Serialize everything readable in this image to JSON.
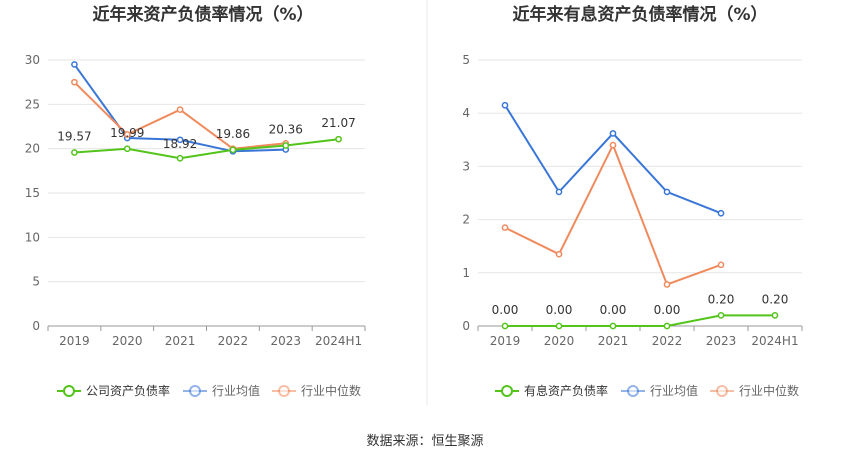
{
  "source_label": "数据来源：恒生聚源",
  "colors": {
    "company": "#52c41a",
    "industry_avg": "#3a76d8",
    "industry_median": "#f08a5d",
    "grid": "#e6e6e6",
    "axis": "#999999",
    "tick_text": "#666666",
    "title": "#333333",
    "divider": "#e8e8e8"
  },
  "chart_data": [
    {
      "type": "line",
      "title": "近年来资产负债率情况（%）",
      "categories": [
        "2019",
        "2020",
        "2021",
        "2022",
        "2023",
        "2024H1"
      ],
      "ylim": [
        0,
        30
      ],
      "yticks": [
        0,
        5,
        10,
        15,
        20,
        25,
        30
      ],
      "grid": true,
      "legend_position": "bottom",
      "series": [
        {
          "name": "公司资产负债率",
          "key": "company",
          "values": [
            19.57,
            19.99,
            18.92,
            19.86,
            20.36,
            21.07
          ],
          "labels": [
            "19.57",
            "19.99",
            "18.92",
            "19.86",
            "20.36",
            "21.07"
          ]
        },
        {
          "name": "行业均值",
          "key": "industry_avg",
          "values": [
            29.5,
            21.2,
            21.0,
            19.7,
            19.9,
            null
          ]
        },
        {
          "name": "行业中位数",
          "key": "industry_median",
          "values": [
            27.5,
            21.6,
            24.4,
            20.0,
            20.6,
            null
          ]
        }
      ]
    },
    {
      "type": "line",
      "title": "近年来有息资产负债率情况（%）",
      "categories": [
        "2019",
        "2020",
        "2021",
        "2022",
        "2023",
        "2024H1"
      ],
      "ylim": [
        0,
        5
      ],
      "yticks": [
        0,
        1,
        2,
        3,
        4,
        5
      ],
      "grid": true,
      "legend_position": "bottom",
      "series": [
        {
          "name": "有息资产负债率",
          "key": "company",
          "values": [
            0.0,
            0.0,
            0.0,
            0.0,
            0.2,
            0.2
          ],
          "labels": [
            "0.00",
            "0.00",
            "0.00",
            "0.00",
            "0.20",
            "0.20"
          ]
        },
        {
          "name": "行业均值",
          "key": "industry_avg",
          "values": [
            4.15,
            2.52,
            3.62,
            2.52,
            2.12,
            null
          ]
        },
        {
          "name": "行业中位数",
          "key": "industry_median",
          "values": [
            1.85,
            1.35,
            3.4,
            0.78,
            1.15,
            null
          ]
        }
      ]
    }
  ]
}
